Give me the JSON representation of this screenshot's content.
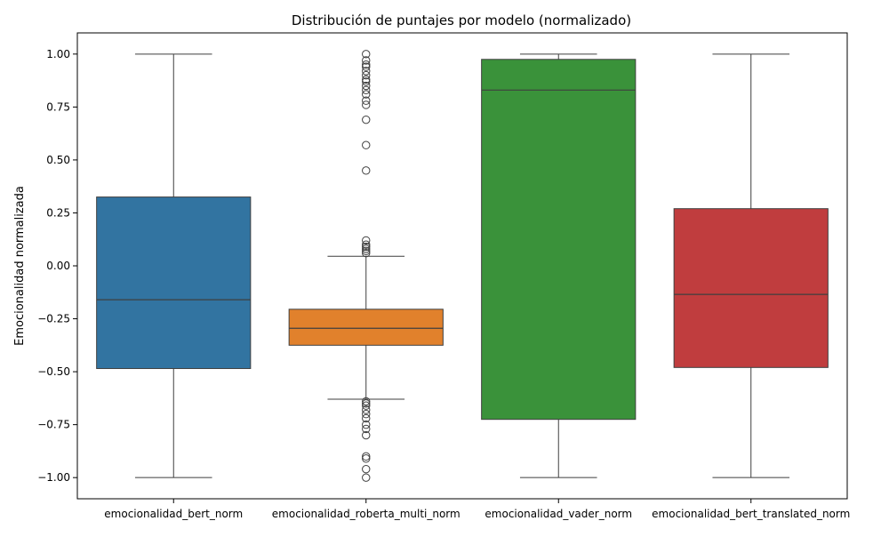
{
  "chart_data": {
    "type": "box",
    "title": "Distribución de puntajes por modelo (normalizado)",
    "xlabel": "",
    "ylabel": "Emocionalidad normalizada",
    "ylim": [
      -1.1,
      1.1
    ],
    "yticks": [
      1.0,
      0.75,
      0.5,
      0.25,
      0.0,
      -0.25,
      -0.5,
      -0.75,
      -1.0
    ],
    "ytick_labels": [
      "1.00",
      "0.75",
      "0.50",
      "0.25",
      "0.00",
      "−0.25",
      "−0.50",
      "−0.75",
      "−1.00"
    ],
    "grid": false,
    "categories": [
      "emocionalidad_bert_norm",
      "emocionalidad_roberta_multi_norm",
      "emocionalidad_vader_norm",
      "emocionalidad_bert_translated_norm"
    ],
    "boxes": [
      {
        "category": "emocionalidad_bert_norm",
        "color": "#3274a1",
        "whisker_low": -1.0,
        "q1": -0.485,
        "median": -0.16,
        "q3": 0.325,
        "whisker_high": 1.0,
        "outliers": []
      },
      {
        "category": "emocionalidad_roberta_multi_norm",
        "color": "#e1812c",
        "whisker_low": -0.63,
        "q1": -0.375,
        "median": -0.295,
        "q3": -0.205,
        "whisker_high": 0.045,
        "outliers": [
          0.45,
          0.57,
          0.69,
          0.76,
          0.78,
          0.81,
          0.83,
          0.85,
          0.87,
          0.88,
          0.9,
          0.92,
          0.94,
          0.95,
          0.97,
          1.0,
          0.06,
          0.07,
          0.08,
          0.09,
          0.1,
          0.12,
          -0.64,
          -0.65,
          -0.66,
          -0.68,
          -0.7,
          -0.72,
          -0.75,
          -0.77,
          -0.8,
          -0.9,
          -0.91,
          -0.96,
          -1.0
        ]
      },
      {
        "category": "emocionalidad_vader_norm",
        "color": "#3a923a",
        "whisker_low": -1.0,
        "q1": -0.725,
        "median": 0.83,
        "q3": 0.975,
        "whisker_high": 1.0,
        "outliers": []
      },
      {
        "category": "emocionalidad_bert_translated_norm",
        "color": "#c03d3e",
        "whisker_low": -1.0,
        "q1": -0.48,
        "median": -0.135,
        "q3": 0.27,
        "whisker_high": 1.0,
        "outliers": []
      }
    ]
  }
}
